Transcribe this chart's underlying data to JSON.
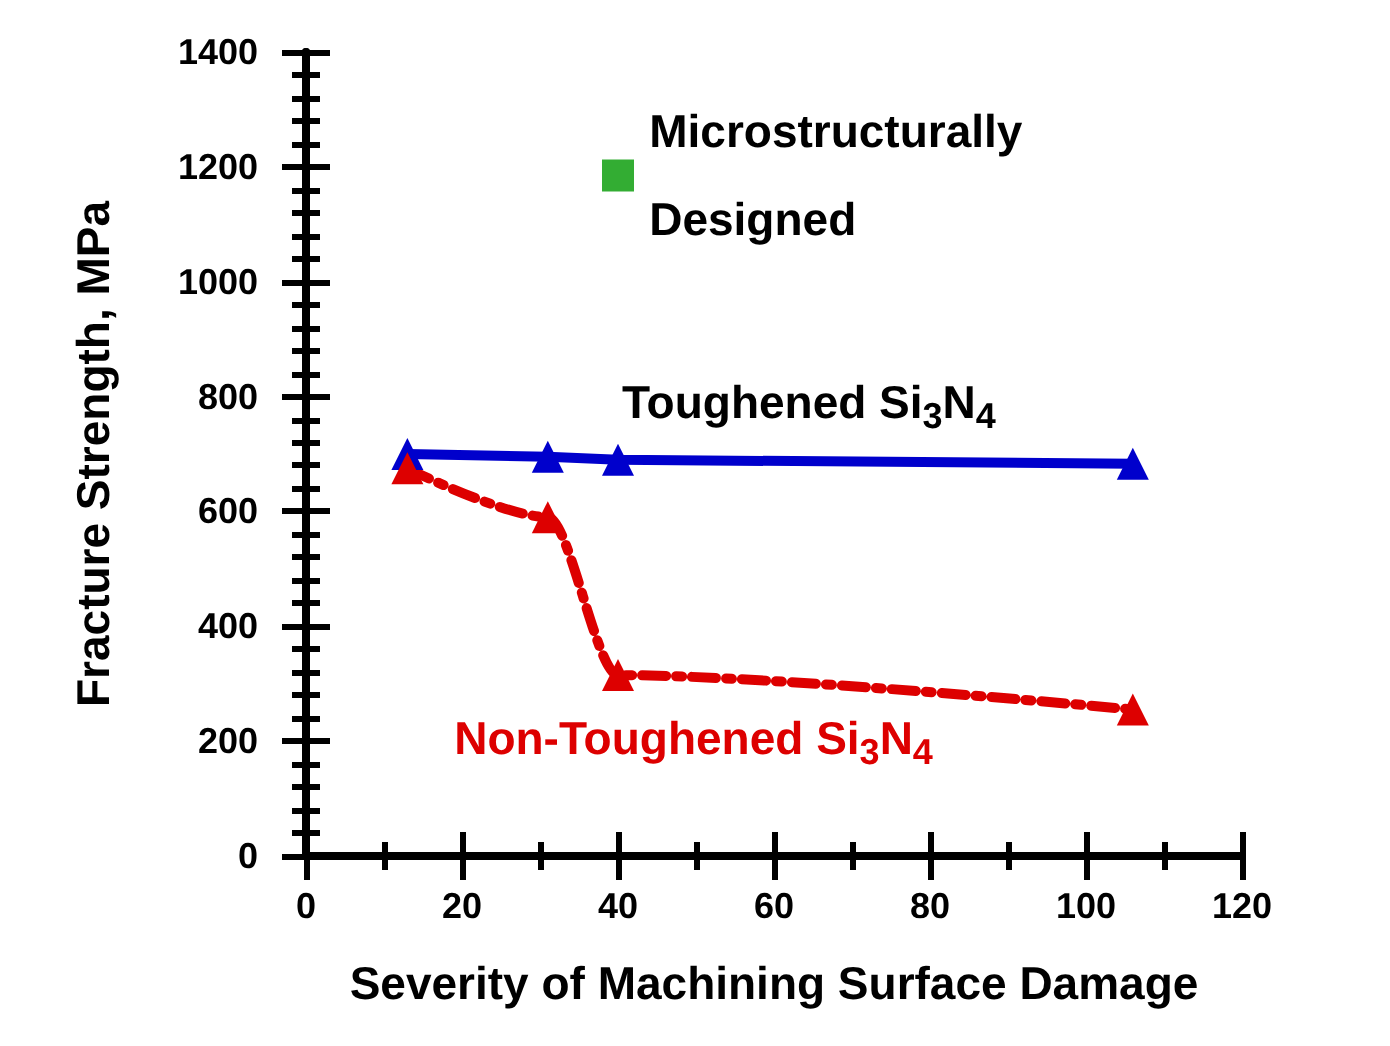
{
  "chart_data": {
    "type": "line",
    "xlabel": "Severity of Machining Surface Damage",
    "ylabel": "Fracture Strength, MPa",
    "xlim": [
      0,
      120
    ],
    "xticks": [
      0,
      20,
      40,
      60,
      80,
      100,
      120
    ],
    "ylim": [
      0,
      1400
    ],
    "yticks": [
      0,
      200,
      400,
      600,
      800,
      1000,
      1200,
      1400
    ],
    "grid": false,
    "legend": false,
    "series": [
      {
        "name": "Toughened Si$_{3}$N$_{4}$",
        "color": "#0000cc",
        "x": [
          13,
          31,
          40,
          106
        ],
        "values": [
          700,
          695,
          690,
          683
        ],
        "marker": "triangle",
        "line_style": "solid"
      },
      {
        "name": "Non-Toughened Si$_{3}$N$_{4}$",
        "color": "#dd0000",
        "x": [
          13,
          31,
          40,
          106
        ],
        "values": [
          675,
          590,
          315,
          255
        ],
        "marker": "triangle",
        "line_style": "dashed"
      },
      {
        "name": "Microstructurally Designed",
        "type": "scatter",
        "color": "#009900",
        "x": [
          40
        ],
        "values": [
          1185
        ],
        "marker": "square"
      }
    ]
  }
}
